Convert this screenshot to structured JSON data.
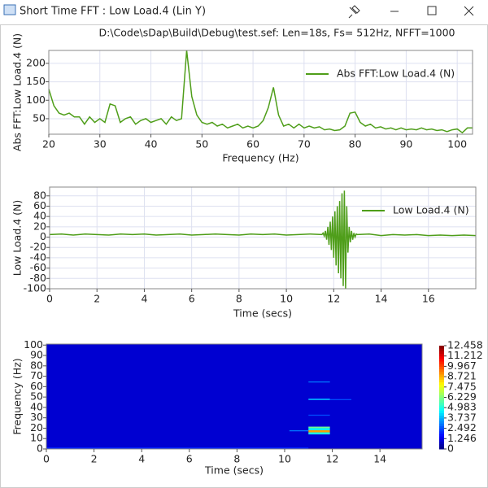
{
  "window": {
    "title": "Short Time FFT : Low Load.4 (Lin Y)"
  },
  "chart_data": [
    {
      "type": "line",
      "title": "D:\\Code\\sDap\\Build\\Debug\\test.sef: Len=18s, Fs= 512Hz, NFFT=1000",
      "xlabel": "Frequency (Hz)",
      "ylabel": "Abs FFT:Low Load.4 (N)",
      "xlim": [
        20,
        103
      ],
      "ylim": [
        8,
        235
      ],
      "xticks": [
        20,
        30,
        40,
        50,
        60,
        70,
        80,
        90,
        100
      ],
      "yticks": [
        50,
        100,
        150,
        200
      ],
      "grid": true,
      "legend": "upper right",
      "x": [
        20,
        21,
        22,
        23,
        24,
        25,
        26,
        27,
        28,
        29,
        30,
        31,
        32,
        33,
        34,
        35,
        36,
        37,
        38,
        39,
        40,
        41,
        42,
        43,
        44,
        45,
        46,
        47,
        48,
        49,
        50,
        51,
        52,
        53,
        54,
        55,
        56,
        57,
        58,
        59,
        60,
        61,
        62,
        63,
        64,
        65,
        66,
        67,
        68,
        69,
        70,
        71,
        72,
        73,
        74,
        75,
        76,
        77,
        78,
        79,
        80,
        81,
        82,
        83,
        84,
        85,
        86,
        87,
        88,
        89,
        90,
        91,
        92,
        93,
        94,
        95,
        96,
        97,
        98,
        99,
        100,
        101,
        102,
        103
      ],
      "series": [
        {
          "name": "Abs FFT:Low Load.4 (N)",
          "color": "#4f9e1a",
          "values": [
            130,
            85,
            65,
            60,
            65,
            55,
            55,
            35,
            55,
            40,
            50,
            40,
            90,
            85,
            40,
            50,
            55,
            35,
            45,
            50,
            40,
            45,
            50,
            35,
            55,
            45,
            50,
            235,
            110,
            60,
            40,
            35,
            40,
            30,
            35,
            25,
            30,
            35,
            25,
            30,
            25,
            30,
            45,
            80,
            135,
            60,
            30,
            35,
            25,
            35,
            25,
            30,
            25,
            28,
            20,
            22,
            18,
            20,
            30,
            65,
            68,
            40,
            30,
            35,
            25,
            28,
            22,
            25,
            20,
            25,
            20,
            22,
            20,
            25,
            20,
            22,
            18,
            20,
            15,
            20,
            22,
            12,
            25,
            25
          ]
        }
      ]
    },
    {
      "type": "line",
      "xlabel": "Time (secs)",
      "ylabel": "Low Load.4 (N)",
      "xlim": [
        0,
        18
      ],
      "ylim": [
        -100,
        97
      ],
      "xticks": [
        0,
        2,
        4,
        6,
        8,
        10,
        12,
        14,
        16
      ],
      "yticks": [
        -100,
        -80,
        -60,
        -40,
        -20,
        0,
        20,
        40,
        60,
        80
      ],
      "grid": true,
      "legend": "upper right",
      "x": [
        0,
        0.5,
        1,
        1.5,
        2,
        2.5,
        3,
        3.5,
        4,
        4.5,
        5,
        5.5,
        6,
        6.5,
        7,
        7.5,
        8,
        8.5,
        9,
        9.5,
        10,
        10.5,
        11,
        11.5,
        11.55,
        11.6,
        11.65,
        11.7,
        11.75,
        11.8,
        11.85,
        11.9,
        11.95,
        12,
        12.05,
        12.1,
        12.15,
        12.2,
        12.25,
        12.3,
        12.35,
        12.4,
        12.45,
        12.5,
        12.55,
        12.6,
        12.65,
        12.7,
        12.75,
        12.8,
        12.85,
        12.9,
        12.95,
        13,
        13.5,
        14,
        14.5,
        15,
        15.5,
        16,
        16.5,
        17,
        17.5,
        18
      ],
      "series": [
        {
          "name": "Low Load.4 (N)",
          "color": "#4f9e1a",
          "values": [
            5,
            6,
            4,
            6,
            5,
            4,
            6,
            5,
            6,
            4,
            5,
            6,
            4,
            5,
            6,
            5,
            4,
            6,
            5,
            6,
            4,
            5,
            6,
            5,
            8,
            2,
            12,
            -5,
            20,
            -15,
            30,
            -25,
            40,
            -40,
            50,
            -55,
            60,
            -70,
            70,
            -80,
            85,
            -95,
            90,
            -100,
            60,
            -30,
            20,
            -10,
            12,
            -5,
            8,
            0,
            6,
            5,
            6,
            3,
            5,
            4,
            5,
            3,
            4,
            3,
            4,
            3
          ]
        }
      ]
    },
    {
      "type": "heatmap",
      "xlabel": "Time (secs)",
      "ylabel": "Frequency (Hz)",
      "xlim": [
        0,
        15.77
      ],
      "ylim": [
        0,
        101
      ],
      "xticks": [
        0,
        2,
        4,
        6,
        8,
        10,
        12,
        14
      ],
      "yticks": [
        0,
        10,
        20,
        30,
        40,
        50,
        60,
        70,
        80,
        90,
        100
      ],
      "zlim": [
        0,
        12.458
      ],
      "zticks": [
        0,
        1.246,
        2.492,
        3.737,
        4.983,
        6.229,
        7.475,
        8.721,
        9.967,
        11.212,
        12.458
      ],
      "cells": [
        {
          "t0": 0,
          "t1": 15.77,
          "f0": 0,
          "f1": 101,
          "value": 1.0
        },
        {
          "t0": 0,
          "t1": 11,
          "f0": 0,
          "f1": 1.5,
          "value": 2.0
        },
        {
          "t0": 10.2,
          "t1": 11,
          "f0": 17,
          "f1": 18,
          "value": 3.0
        },
        {
          "t0": 11,
          "t1": 11.9,
          "f0": 20,
          "f1": 21.5,
          "value": 6.0
        },
        {
          "t0": 11,
          "t1": 11.9,
          "f0": 18,
          "f1": 20,
          "value": 4.5
        },
        {
          "t0": 11,
          "t1": 11.9,
          "f0": 16,
          "f1": 18,
          "value": 9.0
        },
        {
          "t0": 11,
          "t1": 11.9,
          "f0": 14,
          "f1": 16,
          "value": 5.0
        },
        {
          "t0": 11,
          "t1": 11.9,
          "f0": 47,
          "f1": 48.5,
          "value": 3.5
        },
        {
          "t0": 11.9,
          "t1": 12.8,
          "f0": 47,
          "f1": 48,
          "value": 2.5
        },
        {
          "t0": 11,
          "t1": 11.9,
          "f0": 64,
          "f1": 65,
          "value": 3.0
        },
        {
          "t0": 11,
          "t1": 11.9,
          "f0": 32,
          "f1": 33,
          "value": 2.5
        }
      ]
    }
  ]
}
